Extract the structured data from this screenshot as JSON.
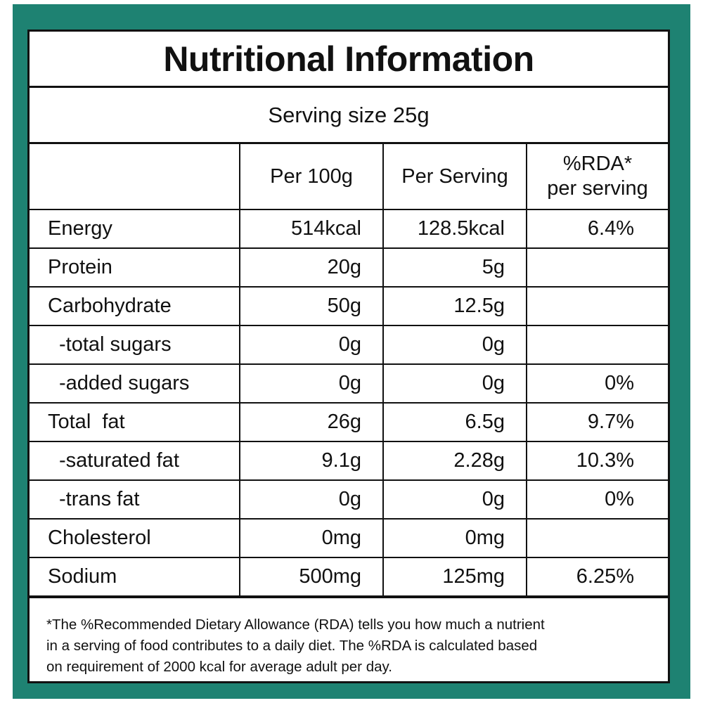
{
  "title": "Nutritional Information",
  "serving_size": "Serving size 25g",
  "columns": {
    "nutrient": "",
    "per_100g": "Per 100g",
    "per_serving": "Per Serving",
    "rda_line1": "%RDA*",
    "rda_line2": "per serving"
  },
  "rows": [
    {
      "name": "Energy",
      "per_100g": "514kcal",
      "per_serving": "128.5kcal",
      "rda": "6.4%"
    },
    {
      "name": "Protein",
      "per_100g": "20g",
      "per_serving": "5g",
      "rda": ""
    },
    {
      "name": "Carbohydrate",
      "per_100g": "50g",
      "per_serving": "12.5g",
      "rda": ""
    },
    {
      "name": "-total sugars",
      "per_100g": "0g",
      "per_serving": "0g",
      "rda": ""
    },
    {
      "name": "-added sugars",
      "per_100g": "0g",
      "per_serving": "0g",
      "rda": "0%"
    },
    {
      "name": "Total  fat",
      "per_100g": "26g",
      "per_serving": "6.5g",
      "rda": "9.7%"
    },
    {
      "name": "-saturated fat",
      "per_100g": "9.1g",
      "per_serving": "2.28g",
      "rda": "10.3%"
    },
    {
      "name": "-trans fat",
      "per_100g": "0g",
      "per_serving": "0g",
      "rda": "0%"
    },
    {
      "name": "Cholesterol",
      "per_100g": "0mg",
      "per_serving": "0mg",
      "rda": ""
    },
    {
      "name": "Sodium",
      "per_100g": "500mg",
      "per_serving": "125mg",
      "rda": "6.25%"
    }
  ],
  "footnote": {
    "line1": "*The %Recommended Dietary Allowance (RDA) tells you how much a nutrient",
    "line2": "in a serving of food contributes to a daily diet. The %RDA is calculated based",
    "line3": "on requirement of 2000 kcal for average adult per day."
  },
  "colors": {
    "frame": "#1e8272",
    "panel": "#ffffff",
    "text": "#111111"
  }
}
